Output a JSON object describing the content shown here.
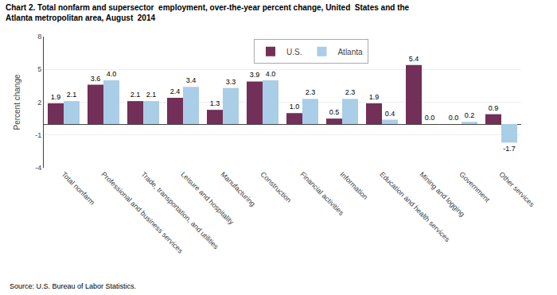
{
  "chart_data": {
    "type": "bar",
    "title": "Chart 2. Total nonfarm and supersector  employment, over-the-year percent change, United  States and the\nAtlanta metropolitan area, August  2014",
    "ylabel": "Percent change",
    "annotations": [
      "Source: U.S. Bureau of Labor Statistics."
    ],
    "categories": [
      "Total nonfarm",
      "Professional and business services",
      "Trade, transportation, and utilities",
      "Leisure and hospitality",
      "Manufacturing",
      "Construction",
      "Financial activities",
      "Information",
      "Education and health services",
      "Mining and logging",
      "Government",
      "Other services"
    ],
    "series": [
      {
        "name": "U.S.",
        "color": "#722f57",
        "values": [
          1.9,
          3.6,
          2.1,
          2.4,
          1.3,
          3.9,
          1.0,
          0.5,
          1.9,
          5.4,
          0.0,
          0.9
        ],
        "value_labels": [
          "1.9",
          "3.6",
          "2.1",
          "2.4",
          "1.3",
          "3.9",
          "1.0",
          "0.5",
          "1.9",
          "5.4",
          "0.0",
          "0.9"
        ]
      },
      {
        "name": "Atlanta",
        "color": "#aacde8",
        "values": [
          2.1,
          4.0,
          2.1,
          3.4,
          3.3,
          4.0,
          2.3,
          2.3,
          0.4,
          0.0,
          0.2,
          -1.7
        ],
        "value_labels": [
          "2.1",
          "4.0",
          "2.1",
          "3.4",
          "3.3",
          "4.0",
          "2.3",
          "2.3",
          "0.4",
          "0.0",
          "0.2",
          "-1.7"
        ]
      }
    ],
    "ylim": [
      -4,
      8
    ],
    "yticks": [
      -4,
      -1,
      2,
      5,
      8
    ],
    "grid": true,
    "legend": "top",
    "data_labels": true
  }
}
